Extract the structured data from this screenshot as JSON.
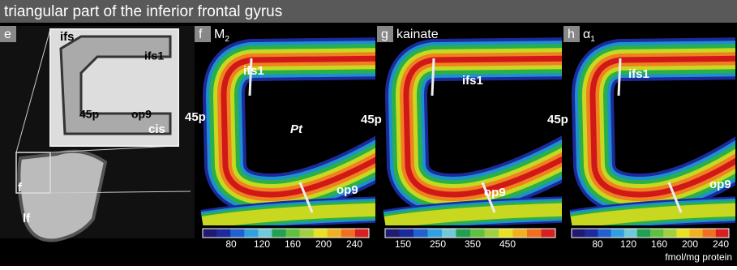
{
  "header": {
    "title": "triangular part of the inferior frontal gyrus"
  },
  "panel_e": {
    "letter": "e",
    "labels": {
      "ifs": "ifs",
      "ifs1": "ifs1",
      "p45": "45p",
      "op9": "op9",
      "cis": "cis",
      "f": "f",
      "lf": "lf"
    }
  },
  "panels": [
    {
      "letter": "f",
      "receptor": "M",
      "sub": "2",
      "labels": [
        "ifs1",
        "Pt",
        "45p",
        "op9"
      ],
      "scale": [
        80,
        120,
        160,
        200,
        240
      ]
    },
    {
      "letter": "g",
      "receptor": "kainate",
      "sub": null,
      "labels": [
        "ifs1",
        "45p",
        "op9"
      ],
      "scale": [
        150,
        250,
        350,
        450
      ]
    },
    {
      "letter": "h",
      "receptor": "α",
      "sub": "1",
      "labels": [
        "ifs1",
        "45p",
        "op9"
      ],
      "scale": [
        80,
        120,
        160,
        200,
        240
      ]
    }
  ],
  "unit": "fmol/mg protein"
}
